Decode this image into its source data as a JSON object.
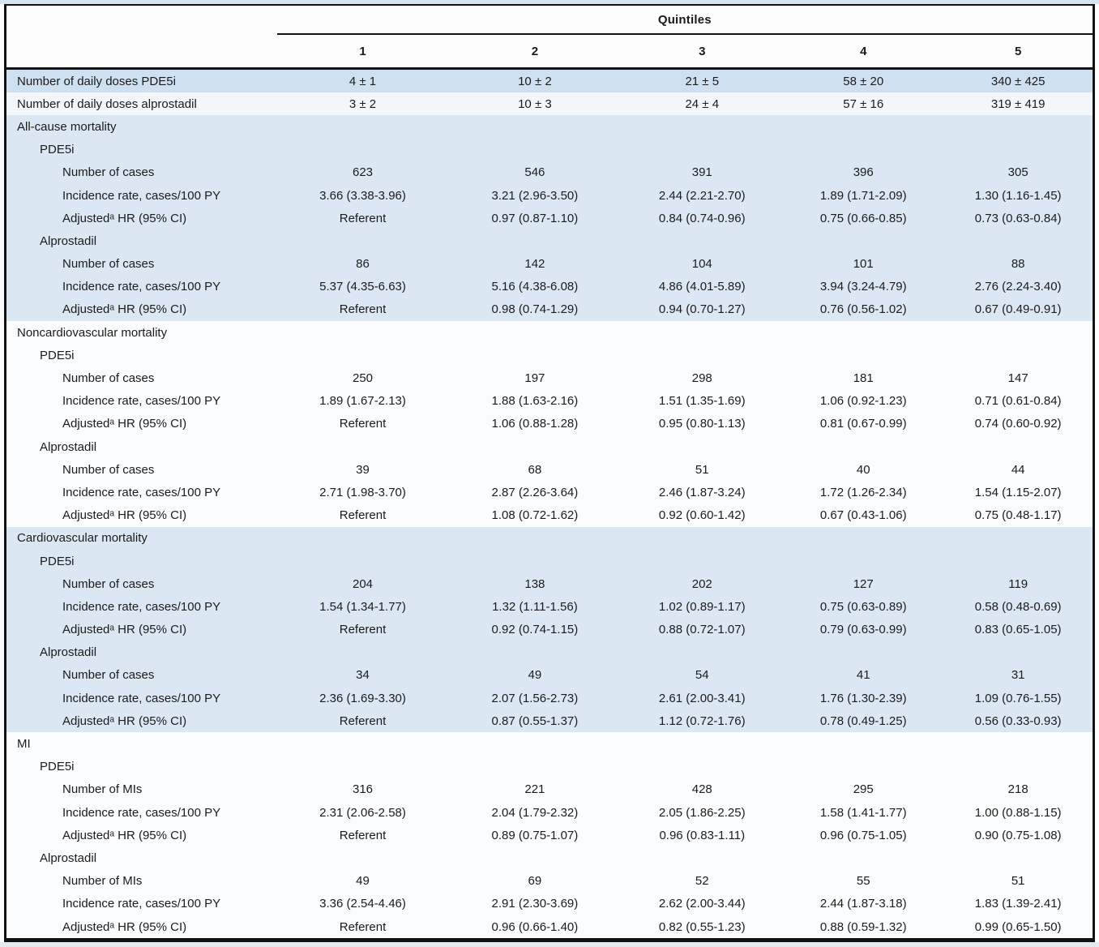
{
  "colors": {
    "text": "#1b1b1b",
    "frame_border": "#121212",
    "header_bg": "#fdfdfe",
    "top_strip": "#d7e5f1",
    "bottom_strip": "#e4eaf0",
    "dose_row_blue": "#cfe1f0",
    "dose_row_white": "#f3f7fb",
    "section_shade_blue": "#dbe8f4",
    "section_shade_white": "#fbfcfe"
  },
  "table": {
    "header": {
      "group_label": "Quintiles",
      "columns": [
        "1",
        "2",
        "3",
        "4",
        "5"
      ]
    },
    "dose_rows": [
      {
        "label": "Number of daily doses PDE5i",
        "shade": "dose_row_blue",
        "values": [
          "4 ± 1",
          "10 ± 2",
          "21 ± 5",
          "58 ± 20",
          "340 ± 425"
        ]
      },
      {
        "label": "Number of daily doses alprostadil",
        "shade": "dose_row_white",
        "values": [
          "3 ± 2",
          "10 ± 3",
          "24 ± 4",
          "57 ± 16",
          "319 ± 419"
        ]
      }
    ],
    "sections": [
      {
        "title": "All-cause mortality",
        "shaded": true,
        "drugs": [
          {
            "name": "PDE5i",
            "rows": [
              {
                "label": "Number of cases",
                "values": [
                  "623",
                  "546",
                  "391",
                  "396",
                  "305"
                ]
              },
              {
                "label": "Incidence rate, cases/100 PY",
                "values": [
                  "3.66 (3.38-3.96)",
                  "3.21 (2.96-3.50)",
                  "2.44 (2.21-2.70)",
                  "1.89 (1.71-2.09)",
                  "1.30 (1.16-1.45)"
                ]
              },
              {
                "label": "Adjustedᵃ HR (95% CI)",
                "values": [
                  "Referent",
                  "0.97 (0.87-1.10)",
                  "0.84 (0.74-0.96)",
                  "0.75 (0.66-0.85)",
                  "0.73 (0.63-0.84)"
                ]
              }
            ]
          },
          {
            "name": "Alprostadil",
            "rows": [
              {
                "label": "Number of cases",
                "values": [
                  "86",
                  "142",
                  "104",
                  "101",
                  "88"
                ]
              },
              {
                "label": "Incidence rate, cases/100 PY",
                "values": [
                  "5.37 (4.35-6.63)",
                  "5.16 (4.38-6.08)",
                  "4.86 (4.01-5.89)",
                  "3.94 (3.24-4.79)",
                  "2.76 (2.24-3.40)"
                ]
              },
              {
                "label": "Adjustedᵃ HR (95% CI)",
                "values": [
                  "Referent",
                  "0.98 (0.74-1.29)",
                  "0.94 (0.70-1.27)",
                  "0.76 (0.56-1.02)",
                  "0.67 (0.49-0.91)"
                ]
              }
            ]
          }
        ]
      },
      {
        "title": "Noncardiovascular mortality",
        "shaded": false,
        "drugs": [
          {
            "name": "PDE5i",
            "rows": [
              {
                "label": "Number of cases",
                "values": [
                  "250",
                  "197",
                  "298",
                  "181",
                  "147"
                ]
              },
              {
                "label": "Incidence rate, cases/100 PY",
                "values": [
                  "1.89 (1.67-2.13)",
                  "1.88 (1.63-2.16)",
                  "1.51 (1.35-1.69)",
                  "1.06 (0.92-1.23)",
                  "0.71 (0.61-0.84)"
                ]
              },
              {
                "label": "Adjustedᵃ HR (95% CI)",
                "values": [
                  "Referent",
                  "1.06 (0.88-1.28)",
                  "0.95 (0.80-1.13)",
                  "0.81 (0.67-0.99)",
                  "0.74 (0.60-0.92)"
                ]
              }
            ]
          },
          {
            "name": "Alprostadil",
            "rows": [
              {
                "label": "Number of cases",
                "values": [
                  "39",
                  "68",
                  "51",
                  "40",
                  "44"
                ]
              },
              {
                "label": "Incidence rate, cases/100 PY",
                "values": [
                  "2.71 (1.98-3.70)",
                  "2.87 (2.26-3.64)",
                  "2.46 (1.87-3.24)",
                  "1.72 (1.26-2.34)",
                  "1.54 (1.15-2.07)"
                ]
              },
              {
                "label": "Adjustedᵃ HR (95% CI)",
                "values": [
                  "Referent",
                  "1.08 (0.72-1.62)",
                  "0.92 (0.60-1.42)",
                  "0.67 (0.43-1.06)",
                  "0.75 (0.48-1.17)"
                ]
              }
            ]
          }
        ]
      },
      {
        "title": "Cardiovascular mortality",
        "shaded": true,
        "drugs": [
          {
            "name": "PDE5i",
            "rows": [
              {
                "label": "Number of cases",
                "values": [
                  "204",
                  "138",
                  "202",
                  "127",
                  "119"
                ]
              },
              {
                "label": "Incidence rate, cases/100 PY",
                "values": [
                  "1.54 (1.34-1.77)",
                  "1.32 (1.11-1.56)",
                  "1.02 (0.89-1.17)",
                  "0.75 (0.63-0.89)",
                  "0.58 (0.48-0.69)"
                ]
              },
              {
                "label": "Adjustedᵃ HR (95% CI)",
                "values": [
                  "Referent",
                  "0.92 (0.74-1.15)",
                  "0.88 (0.72-1.07)",
                  "0.79 (0.63-0.99)",
                  "0.83 (0.65-1.05)"
                ]
              }
            ]
          },
          {
            "name": "Alprostadil",
            "rows": [
              {
                "label": "Number of cases",
                "values": [
                  "34",
                  "49",
                  "54",
                  "41",
                  "31"
                ]
              },
              {
                "label": "Incidence rate, cases/100 PY",
                "values": [
                  "2.36 (1.69-3.30)",
                  "2.07 (1.56-2.73)",
                  "2.61 (2.00-3.41)",
                  "1.76 (1.30-2.39)",
                  "1.09 (0.76-1.55)"
                ]
              },
              {
                "label": "Adjustedᵃ HR (95% CI)",
                "values": [
                  "Referent",
                  "0.87 (0.55-1.37)",
                  "1.12 (0.72-1.76)",
                  "0.78 (0.49-1.25)",
                  "0.56 (0.33-0.93)"
                ]
              }
            ]
          }
        ]
      },
      {
        "title": "MI",
        "shaded": false,
        "drugs": [
          {
            "name": "PDE5i",
            "rows": [
              {
                "label": "Number of MIs",
                "values": [
                  "316",
                  "221",
                  "428",
                  "295",
                  "218"
                ]
              },
              {
                "label": "Incidence rate, cases/100 PY",
                "values": [
                  "2.31 (2.06-2.58)",
                  "2.04 (1.79-2.32)",
                  "2.05 (1.86-2.25)",
                  "1.58 (1.41-1.77)",
                  "1.00 (0.88-1.15)"
                ]
              },
              {
                "label": "Adjustedᵃ HR (95% CI)",
                "values": [
                  "Referent",
                  "0.89 (0.75-1.07)",
                  "0.96 (0.83-1.11)",
                  "0.96 (0.75-1.05)",
                  "0.90 (0.75-1.08)"
                ]
              }
            ]
          },
          {
            "name": "Alprostadil",
            "rows": [
              {
                "label": "Number of MIs",
                "values": [
                  "49",
                  "69",
                  "52",
                  "55",
                  "51"
                ]
              },
              {
                "label": "Incidence rate, cases/100 PY",
                "values": [
                  "3.36 (2.54-4.46)",
                  "2.91 (2.30-3.69)",
                  "2.62 (2.00-3.44)",
                  "2.44 (1.87-3.18)",
                  "1.83 (1.39-2.41)"
                ]
              },
              {
                "label": "Adjustedᵃ HR (95% CI)",
                "values": [
                  "Referent",
                  "0.96 (0.66-1.40)",
                  "0.82 (0.55-1.23)",
                  "0.88 (0.59-1.32)",
                  "0.99 (0.65-1.50)"
                ]
              }
            ]
          }
        ]
      }
    ]
  }
}
